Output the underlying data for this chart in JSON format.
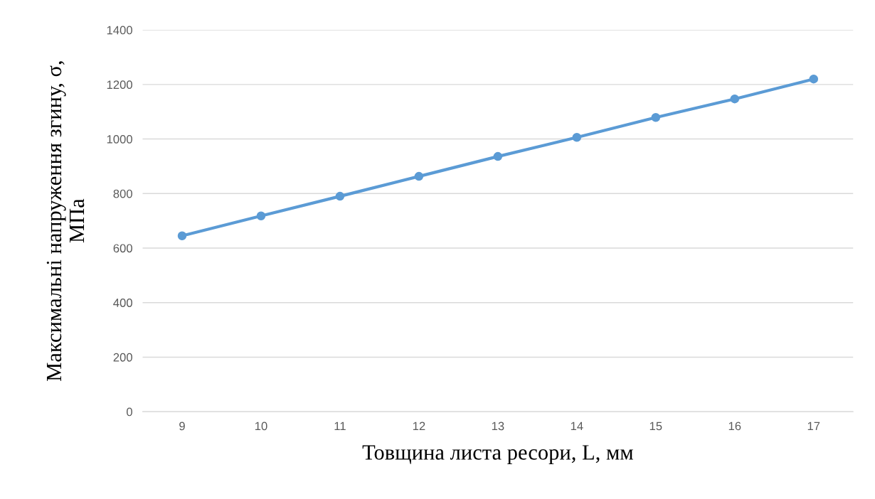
{
  "chart_data": {
    "type": "line",
    "xlabel": "Товщина листа ресори, L, мм",
    "ylabel": "Максимальні напруження згину, σ,\nМПа",
    "categories": [
      "9",
      "10",
      "11",
      "12",
      "13",
      "14",
      "15",
      "16",
      "17"
    ],
    "series": [
      {
        "color": "#5b9bd5",
        "values": [
          645,
          718,
          790,
          863,
          936,
          1006,
          1079,
          1147,
          1220
        ]
      }
    ],
    "ylim": [
      0,
      1400
    ],
    "yticks": [
      0,
      200,
      400,
      600,
      800,
      1000,
      1200,
      1400
    ],
    "grid": "y",
    "marker": "circle",
    "line_style": "solid",
    "legend": false
  }
}
